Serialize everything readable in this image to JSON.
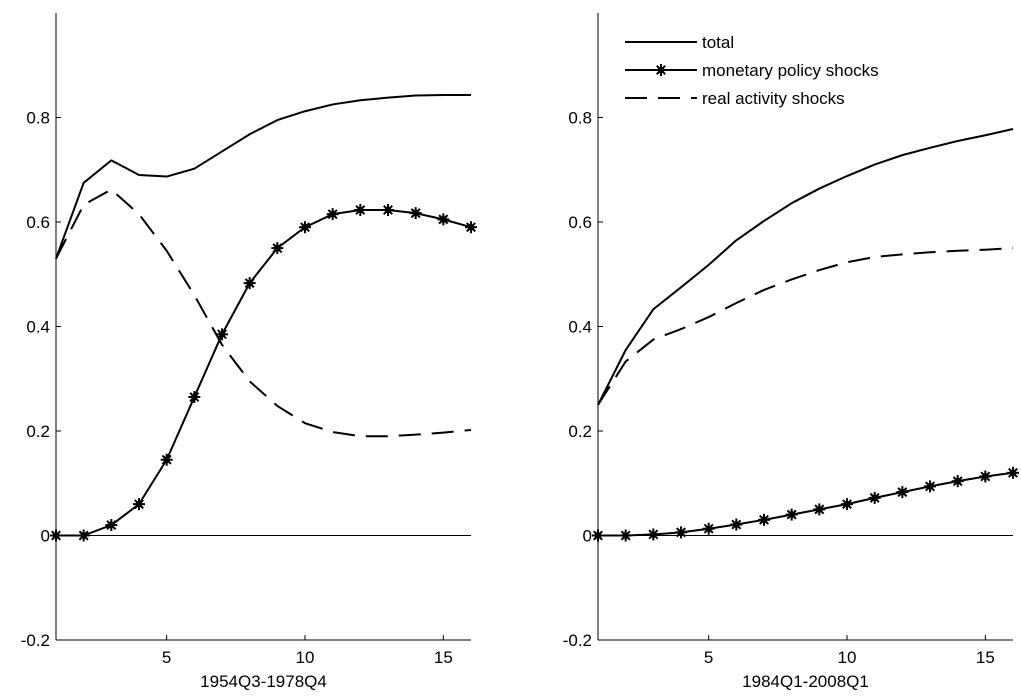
{
  "chart_data": [
    {
      "type": "line",
      "title": "",
      "xlabel": "1954Q3-1978Q4",
      "ylabel": "",
      "xlim": [
        1,
        16
      ],
      "ylim": [
        -0.2,
        1.0
      ],
      "x_ticks": [
        5,
        10,
        15
      ],
      "x_tick_labels": [
        "5",
        "10",
        "15"
      ],
      "y_ticks": [
        -0.2,
        0,
        0.2,
        0.4,
        0.6,
        0.8
      ],
      "y_tick_labels": [
        "-0.2",
        "0",
        "0.2",
        "0.4",
        "0.6",
        "0.8"
      ],
      "grid": false,
      "zero_line": true,
      "x": [
        1,
        2,
        3,
        4,
        5,
        6,
        7,
        8,
        9,
        10,
        11,
        12,
        13,
        14,
        15,
        16
      ],
      "series": [
        {
          "name": "total",
          "style": "solid",
          "marker": false,
          "values": [
            0.53,
            0.675,
            0.718,
            0.69,
            0.687,
            0.702,
            0.735,
            0.768,
            0.795,
            0.812,
            0.825,
            0.833,
            0.838,
            0.842,
            0.843,
            0.843
          ]
        },
        {
          "name": "monetary policy shocks",
          "style": "solid",
          "marker": true,
          "values": [
            0.0,
            0.0,
            0.02,
            0.06,
            0.145,
            0.265,
            0.385,
            0.483,
            0.55,
            0.59,
            0.615,
            0.623,
            0.623,
            0.617,
            0.605,
            0.59
          ]
        },
        {
          "name": "real activity shocks",
          "style": "dashed",
          "marker": false,
          "values": [
            0.53,
            0.633,
            0.662,
            0.615,
            0.545,
            0.46,
            0.365,
            0.295,
            0.248,
            0.215,
            0.198,
            0.19,
            0.19,
            0.193,
            0.197,
            0.202
          ]
        }
      ]
    },
    {
      "type": "line",
      "title": "",
      "xlabel": "1984Q1-2008Q1",
      "ylabel": "",
      "xlim": [
        1,
        16
      ],
      "ylim": [
        -0.2,
        1.0
      ],
      "x_ticks": [
        5,
        10,
        15
      ],
      "x_tick_labels": [
        "5",
        "10",
        "15"
      ],
      "y_ticks": [
        -0.2,
        0,
        0.2,
        0.4,
        0.6,
        0.8
      ],
      "y_tick_labels": [
        "-0.2",
        "0",
        "0.2",
        "0.4",
        "0.6",
        "0.8"
      ],
      "grid": false,
      "zero_line": true,
      "legend_position": "top-left",
      "x": [
        1,
        2,
        3,
        4,
        5,
        6,
        7,
        8,
        9,
        10,
        11,
        12,
        13,
        14,
        15,
        16
      ],
      "series": [
        {
          "name": "total",
          "style": "solid",
          "marker": false,
          "values": [
            0.25,
            0.355,
            0.433,
            0.475,
            0.518,
            0.565,
            0.602,
            0.636,
            0.664,
            0.688,
            0.71,
            0.728,
            0.742,
            0.755,
            0.766,
            0.778
          ]
        },
        {
          "name": "monetary policy shocks",
          "style": "solid",
          "marker": true,
          "values": [
            0.0,
            0.0,
            0.002,
            0.006,
            0.013,
            0.021,
            0.03,
            0.04,
            0.05,
            0.06,
            0.072,
            0.083,
            0.094,
            0.104,
            0.113,
            0.12
          ]
        },
        {
          "name": "real activity shocks",
          "style": "dashed",
          "marker": false,
          "values": [
            0.25,
            0.333,
            0.375,
            0.395,
            0.418,
            0.445,
            0.47,
            0.49,
            0.508,
            0.523,
            0.533,
            0.538,
            0.542,
            0.545,
            0.547,
            0.55
          ]
        }
      ]
    }
  ]
}
